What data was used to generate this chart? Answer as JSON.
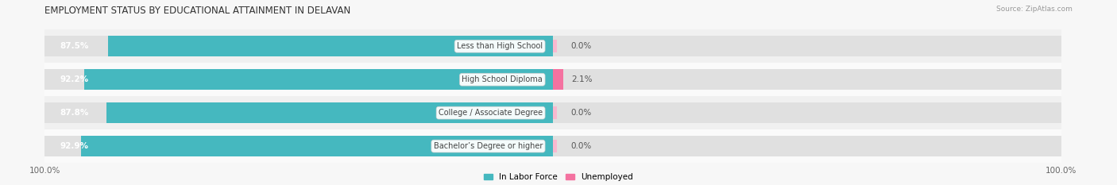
{
  "title": "EMPLOYMENT STATUS BY EDUCATIONAL ATTAINMENT IN DELAVAN",
  "source": "Source: ZipAtlas.com",
  "categories": [
    "Less than High School",
    "High School Diploma",
    "College / Associate Degree",
    "Bachelor’s Degree or higher"
  ],
  "in_labor_force": [
    87.5,
    92.2,
    87.8,
    92.9
  ],
  "unemployed": [
    0.0,
    2.1,
    0.0,
    0.0
  ],
  "bar_color_labor": "#45B8BF",
  "bar_color_unemployed": "#F472A0",
  "bar_color_unemployed_light": "#F9B8CF",
  "bg_color": "#f7f7f7",
  "bar_bg_color": "#e0e0e0",
  "row_bg_even": "#f0f0f0",
  "row_bg_odd": "#fafafa",
  "title_fontsize": 8.5,
  "label_fontsize": 7.5,
  "tick_fontsize": 7.5,
  "bar_height": 0.62,
  "legend_items": [
    "In Labor Force",
    "Unemployed"
  ],
  "legend_colors": [
    "#45B8BF",
    "#F472A0"
  ]
}
